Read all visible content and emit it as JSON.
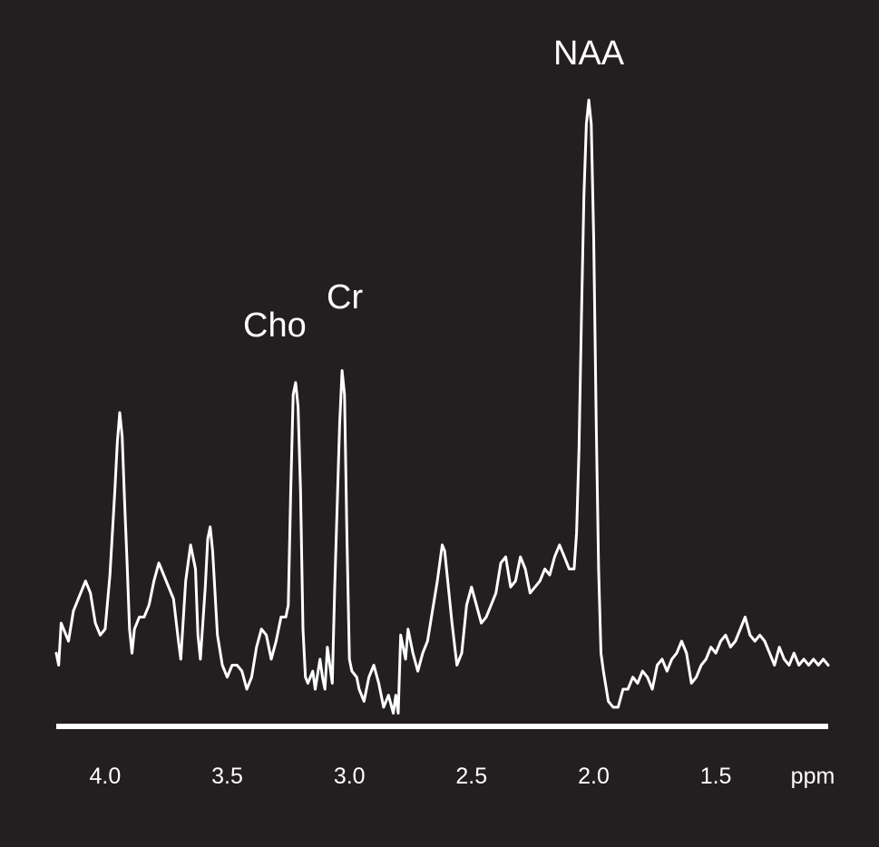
{
  "chart_data": {
    "type": "line",
    "title": "",
    "xlabel": "",
    "ylabel": "",
    "x_unit_label": "ppm",
    "x_reversed": true,
    "xlim": [
      4.2,
      1.04
    ],
    "ylim": [
      0,
      1
    ],
    "grid": false,
    "legend": "none",
    "colors": {
      "background": "#231f20",
      "line": "#ffffff",
      "text": "#ffffff",
      "frame": "#ffffff"
    },
    "x_ticks": [
      4.0,
      3.5,
      3.0,
      2.5,
      2.0,
      1.5
    ],
    "x_tick_labels": [
      "4.0",
      "3.5",
      "3.0",
      "2.5",
      "2.0",
      "1.5"
    ],
    "annotations": [
      {
        "text": "Cho",
        "x": 3.22
      },
      {
        "text": "Cr",
        "x": 3.03
      },
      {
        "text": "NAA",
        "x": 2.02
      }
    ],
    "series": [
      {
        "points": [
          [
            4.2,
            0.06
          ],
          [
            4.19,
            0.04
          ],
          [
            4.18,
            0.11
          ],
          [
            4.17,
            0.1
          ],
          [
            4.15,
            0.08
          ],
          [
            4.13,
            0.13
          ],
          [
            4.1,
            0.16
          ],
          [
            4.08,
            0.18
          ],
          [
            4.06,
            0.16
          ],
          [
            4.04,
            0.11
          ],
          [
            4.02,
            0.09
          ],
          [
            4.0,
            0.1
          ],
          [
            3.98,
            0.19
          ],
          [
            3.96,
            0.33
          ],
          [
            3.95,
            0.41
          ],
          [
            3.94,
            0.46
          ],
          [
            3.93,
            0.42
          ],
          [
            3.92,
            0.31
          ],
          [
            3.91,
            0.21
          ],
          [
            3.9,
            0.1
          ],
          [
            3.89,
            0.06
          ],
          [
            3.88,
            0.1
          ],
          [
            3.86,
            0.12
          ],
          [
            3.84,
            0.12
          ],
          [
            3.82,
            0.14
          ],
          [
            3.8,
            0.18
          ],
          [
            3.78,
            0.21
          ],
          [
            3.76,
            0.19
          ],
          [
            3.74,
            0.17
          ],
          [
            3.72,
            0.15
          ],
          [
            3.7,
            0.08
          ],
          [
            3.69,
            0.05
          ],
          [
            3.67,
            0.18
          ],
          [
            3.65,
            0.24
          ],
          [
            3.63,
            0.2
          ],
          [
            3.62,
            0.09
          ],
          [
            3.61,
            0.05
          ],
          [
            3.59,
            0.17
          ],
          [
            3.58,
            0.25
          ],
          [
            3.57,
            0.27
          ],
          [
            3.56,
            0.23
          ],
          [
            3.54,
            0.09
          ],
          [
            3.52,
            0.04
          ],
          [
            3.5,
            0.02
          ],
          [
            3.48,
            0.04
          ],
          [
            3.46,
            0.04
          ],
          [
            3.44,
            0.03
          ],
          [
            3.42,
            0.0
          ],
          [
            3.4,
            0.02
          ],
          [
            3.38,
            0.07
          ],
          [
            3.36,
            0.1
          ],
          [
            3.34,
            0.09
          ],
          [
            3.32,
            0.05
          ],
          [
            3.3,
            0.08
          ],
          [
            3.28,
            0.12
          ],
          [
            3.26,
            0.12
          ],
          [
            3.25,
            0.14
          ],
          [
            3.24,
            0.33
          ],
          [
            3.23,
            0.49
          ],
          [
            3.22,
            0.51
          ],
          [
            3.21,
            0.47
          ],
          [
            3.2,
            0.33
          ],
          [
            3.19,
            0.1
          ],
          [
            3.18,
            0.02
          ],
          [
            3.17,
            0.01
          ],
          [
            3.15,
            0.03
          ],
          [
            3.14,
            0.0
          ],
          [
            3.12,
            0.05
          ],
          [
            3.11,
            0.02
          ],
          [
            3.1,
            0.0
          ],
          [
            3.09,
            0.07
          ],
          [
            3.08,
            0.04
          ],
          [
            3.07,
            0.01
          ],
          [
            3.06,
            0.17
          ],
          [
            3.04,
            0.44
          ],
          [
            3.03,
            0.53
          ],
          [
            3.02,
            0.49
          ],
          [
            3.01,
            0.25
          ],
          [
            3.0,
            0.05
          ],
          [
            2.99,
            0.03
          ],
          [
            2.97,
            0.02
          ],
          [
            2.96,
            0.0
          ],
          [
            2.94,
            -0.02
          ],
          [
            2.92,
            0.02
          ],
          [
            2.9,
            0.04
          ],
          [
            2.88,
            0.01
          ],
          [
            2.86,
            -0.03
          ],
          [
            2.84,
            -0.01
          ],
          [
            2.82,
            -0.04
          ],
          [
            2.81,
            -0.01
          ],
          [
            2.8,
            -0.04
          ],
          [
            2.79,
            0.09
          ],
          [
            2.77,
            0.05
          ],
          [
            2.76,
            0.1
          ],
          [
            2.74,
            0.06
          ],
          [
            2.72,
            0.03
          ],
          [
            2.7,
            0.06
          ],
          [
            2.68,
            0.08
          ],
          [
            2.66,
            0.13
          ],
          [
            2.64,
            0.18
          ],
          [
            2.62,
            0.24
          ],
          [
            2.61,
            0.23
          ],
          [
            2.6,
            0.19
          ],
          [
            2.58,
            0.11
          ],
          [
            2.56,
            0.04
          ],
          [
            2.54,
            0.06
          ],
          [
            2.52,
            0.14
          ],
          [
            2.5,
            0.17
          ],
          [
            2.48,
            0.14
          ],
          [
            2.46,
            0.11
          ],
          [
            2.44,
            0.12
          ],
          [
            2.42,
            0.14
          ],
          [
            2.4,
            0.16
          ],
          [
            2.38,
            0.21
          ],
          [
            2.36,
            0.22
          ],
          [
            2.34,
            0.17
          ],
          [
            2.32,
            0.18
          ],
          [
            2.3,
            0.22
          ],
          [
            2.28,
            0.2
          ],
          [
            2.26,
            0.16
          ],
          [
            2.24,
            0.17
          ],
          [
            2.22,
            0.18
          ],
          [
            2.2,
            0.2
          ],
          [
            2.18,
            0.19
          ],
          [
            2.16,
            0.22
          ],
          [
            2.14,
            0.24
          ],
          [
            2.12,
            0.22
          ],
          [
            2.1,
            0.2
          ],
          [
            2.08,
            0.2
          ],
          [
            2.07,
            0.26
          ],
          [
            2.06,
            0.4
          ],
          [
            2.05,
            0.62
          ],
          [
            2.04,
            0.82
          ],
          [
            2.03,
            0.94
          ],
          [
            2.02,
            0.98
          ],
          [
            2.01,
            0.94
          ],
          [
            2.0,
            0.75
          ],
          [
            1.99,
            0.45
          ],
          [
            1.98,
            0.2
          ],
          [
            1.97,
            0.06
          ],
          [
            1.96,
            0.03
          ],
          [
            1.94,
            -0.02
          ],
          [
            1.92,
            -0.03
          ],
          [
            1.9,
            -0.03
          ],
          [
            1.88,
            0.0
          ],
          [
            1.86,
            0.0
          ],
          [
            1.84,
            0.02
          ],
          [
            1.82,
            0.01
          ],
          [
            1.8,
            0.03
          ],
          [
            1.78,
            0.02
          ],
          [
            1.76,
            0.0
          ],
          [
            1.74,
            0.04
          ],
          [
            1.72,
            0.05
          ],
          [
            1.7,
            0.03
          ],
          [
            1.68,
            0.05
          ],
          [
            1.66,
            0.06
          ],
          [
            1.64,
            0.08
          ],
          [
            1.62,
            0.06
          ],
          [
            1.6,
            0.01
          ],
          [
            1.58,
            0.02
          ],
          [
            1.56,
            0.04
          ],
          [
            1.54,
            0.05
          ],
          [
            1.52,
            0.07
          ],
          [
            1.5,
            0.06
          ],
          [
            1.48,
            0.08
          ],
          [
            1.46,
            0.09
          ],
          [
            1.44,
            0.07
          ],
          [
            1.42,
            0.08
          ],
          [
            1.4,
            0.1
          ],
          [
            1.38,
            0.12
          ],
          [
            1.36,
            0.09
          ],
          [
            1.34,
            0.08
          ],
          [
            1.32,
            0.09
          ],
          [
            1.3,
            0.08
          ],
          [
            1.28,
            0.06
          ],
          [
            1.26,
            0.04
          ],
          [
            1.24,
            0.07
          ],
          [
            1.22,
            0.05
          ],
          [
            1.2,
            0.04
          ],
          [
            1.18,
            0.06
          ],
          [
            1.16,
            0.04
          ],
          [
            1.14,
            0.05
          ],
          [
            1.12,
            0.04
          ],
          [
            1.1,
            0.05
          ],
          [
            1.08,
            0.04
          ],
          [
            1.06,
            0.05
          ],
          [
            1.04,
            0.04
          ]
        ]
      }
    ]
  }
}
